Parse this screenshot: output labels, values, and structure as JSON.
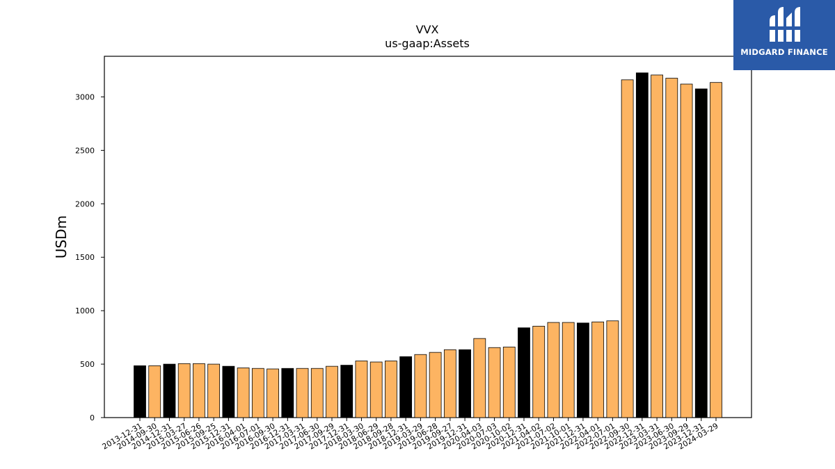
{
  "chart_data": {
    "type": "bar",
    "title": "VVX",
    "subtitle": "us-gaap:Assets",
    "xlabel": "",
    "ylabel": "USDm",
    "ylim": [
      0,
      3380
    ],
    "yticks": [
      0,
      500,
      1000,
      1500,
      2000,
      2500,
      3000
    ],
    "grid": false,
    "categories": [
      "2013-12-31",
      "2014-09-30",
      "2014-12-31",
      "2015-03-27",
      "2015-06-26",
      "2015-09-25",
      "2015-12-31",
      "2016-04-01",
      "2016-07-01",
      "2016-09-30",
      "2016-12-31",
      "2017-03-31",
      "2017-06-30",
      "2017-09-29",
      "2017-12-31",
      "2018-03-30",
      "2018-06-29",
      "2018-09-28",
      "2018-12-31",
      "2019-03-29",
      "2019-06-28",
      "2019-09-27",
      "2019-12-31",
      "2020-04-03",
      "2020-07-03",
      "2020-10-02",
      "2020-12-31",
      "2021-04-02",
      "2021-07-02",
      "2021-10-01",
      "2021-12-31",
      "2022-04-01",
      "2022-07-01",
      "2022-09-30",
      "2022-12-31",
      "2023-03-31",
      "2023-06-30",
      "2023-09-29",
      "2023-12-31",
      "2024-03-29"
    ],
    "values": [
      485,
      485,
      500,
      505,
      505,
      500,
      480,
      465,
      460,
      455,
      460,
      460,
      460,
      480,
      490,
      530,
      520,
      530,
      570,
      590,
      610,
      635,
      635,
      740,
      655,
      660,
      840,
      855,
      890,
      890,
      885,
      895,
      905,
      3160,
      3225,
      3205,
      3175,
      3120,
      3075,
      3135
    ],
    "bar_kinds": [
      "annual",
      "quarterly",
      "annual",
      "quarterly",
      "quarterly",
      "quarterly",
      "annual",
      "quarterly",
      "quarterly",
      "quarterly",
      "annual",
      "quarterly",
      "quarterly",
      "quarterly",
      "annual",
      "quarterly",
      "quarterly",
      "quarterly",
      "annual",
      "quarterly",
      "quarterly",
      "quarterly",
      "annual",
      "quarterly",
      "quarterly",
      "quarterly",
      "annual",
      "quarterly",
      "quarterly",
      "quarterly",
      "annual",
      "quarterly",
      "quarterly",
      "quarterly",
      "annual",
      "quarterly",
      "quarterly",
      "quarterly",
      "annual",
      "quarterly"
    ],
    "colors": {
      "annual": "#000000",
      "quarterly": "#fdb462",
      "edge": "#000000"
    }
  },
  "logo": {
    "text": "MIDGARD FINANCE",
    "background": "#2a5aa8"
  }
}
